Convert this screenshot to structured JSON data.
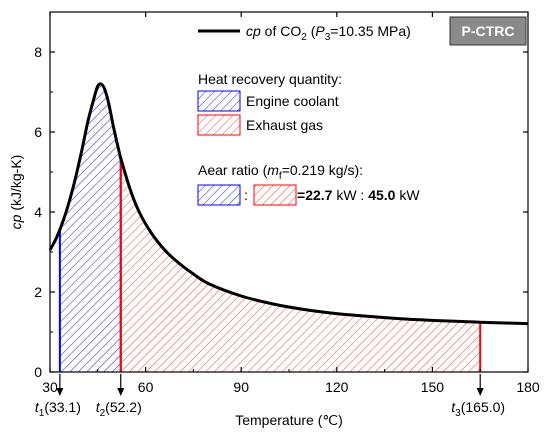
{
  "chart_data": {
    "type": "area",
    "xlabel": "Temperature (℃)",
    "ylabel": "cp (kJ/kg-K)",
    "xlim": [
      30,
      180
    ],
    "ylim": [
      0,
      9
    ],
    "xticks": [
      "30",
      "60",
      "90",
      "120",
      "150",
      "180"
    ],
    "xtick_values": [
      30,
      60,
      90,
      120,
      150,
      180
    ],
    "yticks": [
      "0",
      "2",
      "4",
      "6",
      "8"
    ],
    "ytick_values": [
      0,
      2,
      4,
      6,
      8
    ],
    "series": [
      {
        "name": "cp of CO2 (P3=10.35 MPa)",
        "color": "#000000",
        "x": [
          30,
          32,
          34,
          36,
          38,
          40,
          42,
          44,
          45,
          46,
          47,
          48,
          49,
          50,
          52,
          52.2,
          55,
          58,
          62,
          66,
          70,
          75,
          80,
          90,
          100,
          110,
          120,
          130,
          140,
          150,
          160,
          165,
          170,
          180
        ],
        "y": [
          3.05,
          3.35,
          3.75,
          4.25,
          4.85,
          5.55,
          6.3,
          6.9,
          7.15,
          7.2,
          7.1,
          6.85,
          6.5,
          6.1,
          5.4,
          5.35,
          4.6,
          4.0,
          3.45,
          3.05,
          2.75,
          2.45,
          2.2,
          1.9,
          1.7,
          1.56,
          1.46,
          1.39,
          1.33,
          1.29,
          1.26,
          1.245,
          1.23,
          1.21
        ]
      }
    ],
    "shaded_regions": [
      {
        "name": "Engine coolant",
        "x_from": 33.1,
        "x_to": 52.2,
        "color": "#3333cc",
        "edge_color": "#0000ff",
        "hatch": "diagonal"
      },
      {
        "name": "Exhaust gas",
        "x_from": 52.2,
        "x_to": 165.0,
        "color": "#ee5555",
        "edge_color": "#ff0000",
        "hatch": "diagonal"
      }
    ],
    "markers": [
      {
        "x": 33.1,
        "label_main": "t",
        "label_sub": "1",
        "label_rest": "(33.1)"
      },
      {
        "x": 52.2,
        "label_main": "t",
        "label_sub": "2",
        "label_rest": "(52.2)"
      },
      {
        "x": 165.0,
        "label_main": "t",
        "label_sub": "3",
        "label_rest": "(165.0)"
      }
    ],
    "legend": {
      "placement": "top-right",
      "cp_part1": "cp",
      "cp_part2": " of CO",
      "cp_sub": "2",
      "cp_part3": "  (",
      "cp_p": "P",
      "cp_p_sub": "3",
      "cp_part4": "=10.35 MPa)",
      "badge": "P-CTRC",
      "heat_title": "Heat recovery quantity:",
      "coolant_label": "Engine coolant",
      "exhaust_label": "Exhaust gas",
      "ratio_part1": "Aear ratio (",
      "ratio_m": "m",
      "ratio_m_sub": "f",
      "ratio_part2": "=0.219 kg/s):",
      "ratio_sep": ":",
      "ratio_eq": "=",
      "val1": "22.7",
      "val1_unit": " kW : ",
      "val2": "45.0",
      "val2_unit": " kW"
    }
  }
}
